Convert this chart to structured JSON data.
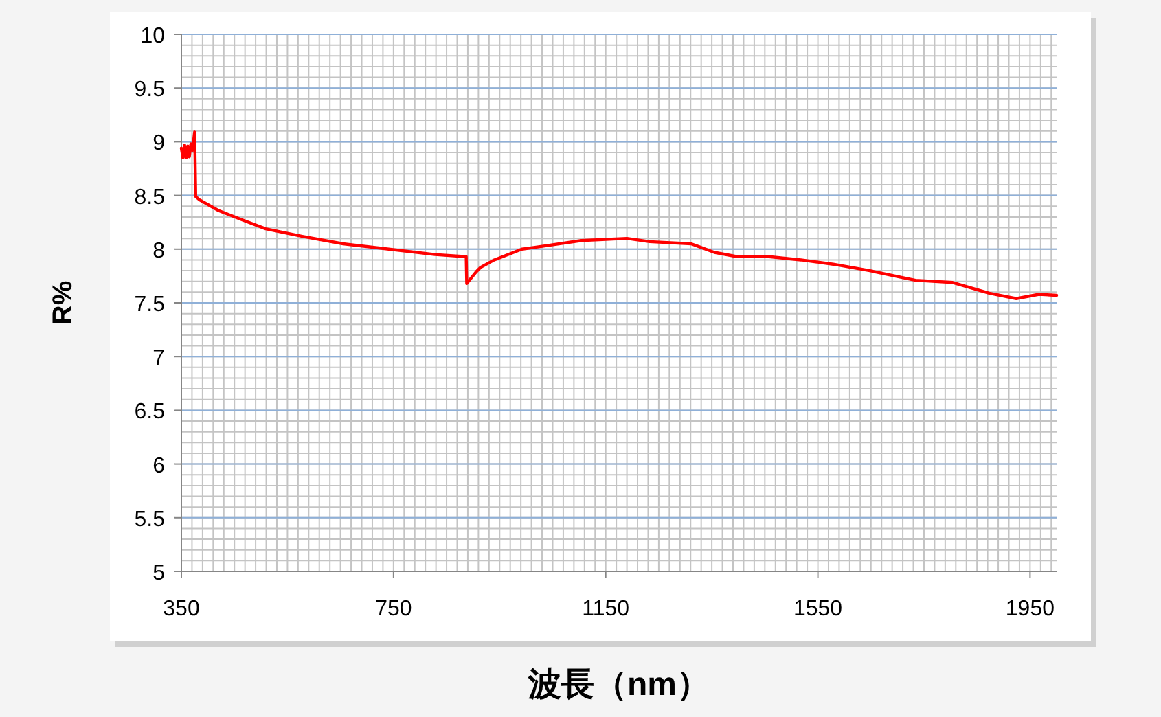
{
  "chart_data": {
    "type": "line",
    "xlabel": "波長（nm）",
    "ylabel": "R%",
    "xlim": [
      350,
      2000
    ],
    "xticks": [
      350,
      750,
      1150,
      1550,
      1950
    ],
    "ylim": [
      5,
      10
    ],
    "yticks": [
      5,
      5.5,
      6,
      6.5,
      7,
      7.5,
      8,
      8.5,
      9,
      9.5,
      10
    ],
    "grid": true,
    "marker": "none",
    "line_style": "solid",
    "series": [
      {
        "color": "#ff0000",
        "x": [
          350,
          353,
          356,
          359,
          362,
          365,
          368,
          371,
          375,
          377,
          384,
          420,
          466,
          509,
          578,
          655,
          741,
          828,
          887,
          888,
          906,
          914,
          940,
          992,
          1035,
          1104,
          1190,
          1233,
          1311,
          1355,
          1398,
          1458,
          1518,
          1579,
          1648,
          1734,
          1804,
          1873,
          1924,
          1967,
          2000
        ],
        "values": [
          8.94,
          8.85,
          8.97,
          8.85,
          8.96,
          8.86,
          8.98,
          8.92,
          9.09,
          8.49,
          8.46,
          8.36,
          8.27,
          8.19,
          8.12,
          8.05,
          8.0,
          7.95,
          7.93,
          7.68,
          7.79,
          7.83,
          7.9,
          8.0,
          8.03,
          8.08,
          8.1,
          8.07,
          8.05,
          7.97,
          7.93,
          7.93,
          7.9,
          7.86,
          7.8,
          7.71,
          7.69,
          7.59,
          7.54,
          7.58,
          7.57
        ]
      }
    ]
  }
}
